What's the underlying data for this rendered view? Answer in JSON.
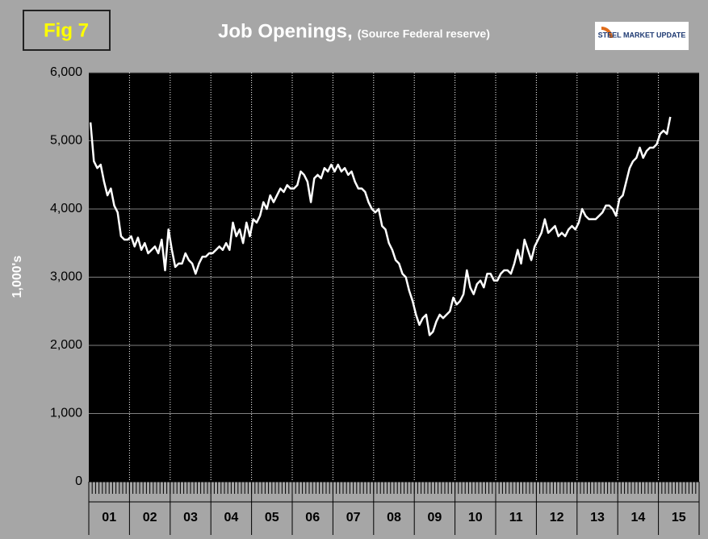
{
  "chart_data": {
    "type": "line",
    "figure_label": "Fig 7",
    "title": "Job Openings,",
    "subtitle": "(Source Federal reserve)",
    "logo": "STEEL MARKET UPDATE",
    "y_label": "1,000's",
    "categories": [
      "01",
      null,
      null,
      null,
      null,
      null,
      null,
      null,
      null,
      null,
      null,
      null,
      "02",
      null,
      null,
      null,
      null,
      null,
      null,
      null,
      null,
      null,
      null,
      null,
      "03",
      null,
      null,
      null,
      null,
      null,
      null,
      null,
      null,
      null,
      null,
      null,
      "04",
      null,
      null,
      null,
      null,
      null,
      null,
      null,
      null,
      null,
      null,
      null,
      "05",
      null,
      null,
      null,
      null,
      null,
      null,
      null,
      null,
      null,
      null,
      null,
      "06",
      null,
      null,
      null,
      null,
      null,
      null,
      null,
      null,
      null,
      null,
      null,
      "07",
      null,
      null,
      null,
      null,
      null,
      null,
      null,
      null,
      null,
      null,
      null,
      "08",
      null,
      null,
      null,
      null,
      null,
      null,
      null,
      null,
      null,
      null,
      null,
      "09",
      null,
      null,
      null,
      null,
      null,
      null,
      null,
      null,
      null,
      null,
      null,
      "10",
      null,
      null,
      null,
      null,
      null,
      null,
      null,
      null,
      null,
      null,
      null,
      "11",
      null,
      null,
      null,
      null,
      null,
      null,
      null,
      null,
      null,
      null,
      null,
      "12",
      null,
      null,
      null,
      null,
      null,
      null,
      null,
      null,
      null,
      null,
      null,
      "13",
      null,
      null,
      null,
      null,
      null,
      null,
      null,
      null,
      null,
      null,
      null,
      "14",
      null,
      null,
      null,
      null,
      null,
      null,
      null,
      null,
      null,
      null,
      null,
      "15",
      null,
      null,
      null
    ],
    "series": [
      {
        "name": "Job Openings",
        "color": "#ffffff",
        "values": [
          5270,
          4700,
          4600,
          4650,
          4400,
          4200,
          4300,
          4050,
          3950,
          3600,
          3550,
          3550,
          3600,
          3450,
          3580,
          3400,
          3500,
          3350,
          3400,
          3450,
          3350,
          3550,
          3100,
          3700,
          3400,
          3150,
          3200,
          3200,
          3350,
          3250,
          3200,
          3050,
          3200,
          3300,
          3300,
          3350,
          3350,
          3400,
          3450,
          3400,
          3500,
          3400,
          3800,
          3600,
          3700,
          3500,
          3800,
          3600,
          3850,
          3800,
          3900,
          4100,
          4000,
          4200,
          4100,
          4200,
          4300,
          4250,
          4350,
          4300,
          4300,
          4350,
          4550,
          4500,
          4400,
          4100,
          4450,
          4500,
          4450,
          4600,
          4550,
          4650,
          4550,
          4650,
          4550,
          4600,
          4500,
          4550,
          4400,
          4300,
          4300,
          4250,
          4100,
          4000,
          3950,
          4000,
          3750,
          3700,
          3500,
          3400,
          3250,
          3200,
          3050,
          3000,
          2800,
          2650,
          2450,
          2300,
          2400,
          2450,
          2150,
          2200,
          2350,
          2450,
          2400,
          2450,
          2500,
          2700,
          2600,
          2650,
          2750,
          3100,
          2850,
          2750,
          2900,
          2950,
          2850,
          3050,
          3050,
          2950,
          2950,
          3050,
          3100,
          3100,
          3050,
          3200,
          3400,
          3200,
          3550,
          3400,
          3250,
          3450,
          3550,
          3650,
          3850,
          3650,
          3700,
          3750,
          3600,
          3650,
          3600,
          3700,
          3750,
          3700,
          3800,
          4000,
          3900,
          3850,
          3850,
          3850,
          3900,
          3950,
          4050,
          4050,
          4000,
          3900,
          4150,
          4200,
          4400,
          4600,
          4700,
          4750,
          4900,
          4750,
          4850,
          4900,
          4900,
          4950,
          5100,
          5150,
          5100,
          5350
        ]
      }
    ],
    "ylim": [
      0,
      6000
    ],
    "yticks": [
      0,
      {
        "value": 1000,
        "label": "1,000"
      },
      {
        "value": 2000,
        "label": "2,000"
      },
      {
        "value": 3000,
        "label": "3,000"
      },
      {
        "value": 4000,
        "label": "4,000"
      },
      {
        "value": 5000,
        "label": "5,000"
      },
      {
        "value": 6000,
        "label": "6,000"
      }
    ],
    "grid": true
  }
}
